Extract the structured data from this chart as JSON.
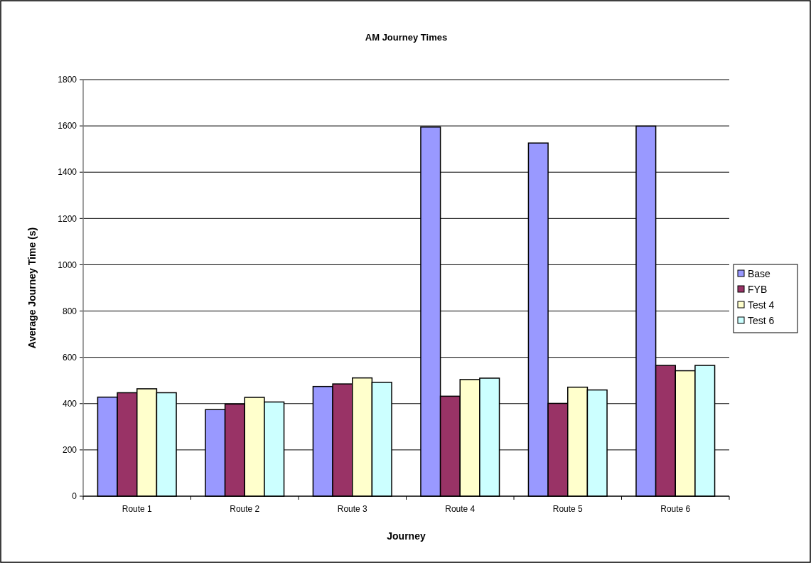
{
  "chart_data": {
    "type": "bar",
    "title": "AM Journey Times",
    "xlabel": "Journey",
    "ylabel": "Average Journey Time (s)",
    "categories": [
      "Route 1",
      "Route 2",
      "Route 3",
      "Route 4",
      "Route 5",
      "Route 6"
    ],
    "series": [
      {
        "name": "Base",
        "color": "#9999ff",
        "values": [
          428,
          374,
          474,
          1595,
          1526,
          1599
        ]
      },
      {
        "name": "FYB",
        "color": "#993366",
        "values": [
          447,
          398,
          485,
          432,
          401,
          565
        ]
      },
      {
        "name": "Test 4",
        "color": "#ffffcc",
        "values": [
          464,
          427,
          511,
          504,
          471,
          542
        ]
      },
      {
        "name": "Test 6",
        "color": "#ccffff",
        "values": [
          447,
          407,
          492,
          510,
          459,
          565
        ]
      }
    ],
    "ylim": [
      0,
      1800
    ],
    "yticks": [
      0,
      200,
      400,
      600,
      800,
      1000,
      1200,
      1400,
      1600,
      1800
    ],
    "grid": "y",
    "legend": "right"
  }
}
